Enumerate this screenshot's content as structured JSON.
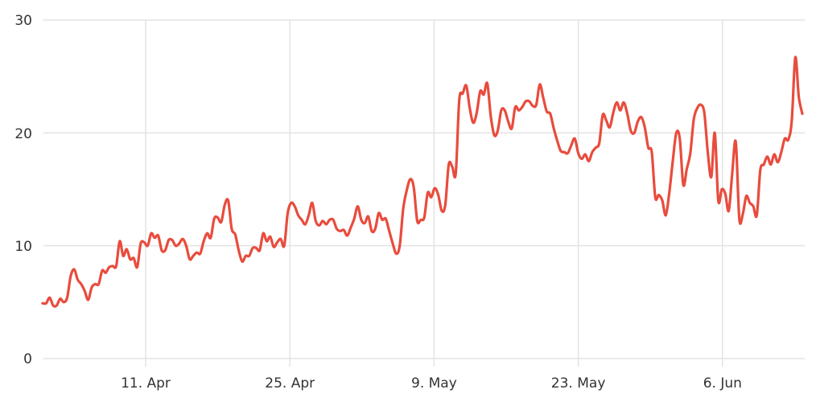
{
  "chart_data": {
    "type": "line",
    "title": "",
    "xlabel": "",
    "ylabel": "",
    "ylim": [
      0,
      30
    ],
    "y_ticks": [
      "0",
      "10",
      "20",
      "30"
    ],
    "x_ticks": [
      {
        "label": "11. Apr",
        "date": "Apr 11"
      },
      {
        "label": "25. Apr",
        "date": "Apr 25"
      },
      {
        "label": "9. May",
        "date": "May 9"
      },
      {
        "label": "23. May",
        "date": "May 23"
      },
      {
        "label": "6. Jun",
        "date": "Jun 6"
      }
    ],
    "x_start": "Apr 1 00:00",
    "x_end": "Jun 13 18:00",
    "grid": true,
    "line_color": "#e84c3d",
    "values": [
      4.9,
      4.9,
      5.4,
      4.7,
      4.7,
      5.3,
      5.0,
      5.4,
      7.3,
      7.9,
      7.0,
      6.6,
      6.0,
      5.2,
      6.3,
      6.6,
      6.6,
      7.8,
      7.6,
      8.1,
      8.2,
      8.2,
      10.4,
      9.1,
      9.7,
      8.8,
      8.9,
      8.1,
      10.2,
      10.3,
      10.0,
      11.1,
      10.7,
      10.9,
      9.6,
      9.6,
      10.5,
      10.5,
      10.0,
      10.2,
      10.6,
      10.0,
      8.8,
      9.1,
      9.4,
      9.3,
      10.4,
      11.1,
      10.7,
      12.4,
      12.5,
      12.1,
      13.6,
      14.0,
      11.5,
      11.0,
      9.6,
      8.6,
      9.1,
      9.1,
      9.8,
      9.8,
      9.6,
      11.1,
      10.4,
      10.8,
      9.9,
      10.3,
      10.6,
      10.0,
      12.9,
      13.8,
      13.5,
      12.7,
      12.3,
      11.9,
      12.7,
      13.8,
      12.2,
      11.8,
      12.2,
      11.9,
      12.3,
      12.3,
      11.5,
      11.3,
      11.4,
      10.9,
      11.6,
      12.4,
      13.5,
      12.3,
      12.0,
      12.6,
      11.3,
      11.5,
      12.9,
      12.3,
      12.4,
      11.3,
      10.2,
      9.3,
      10.0,
      13.3,
      14.9,
      15.9,
      15.2,
      12.2,
      12.3,
      12.5,
      14.7,
      14.3,
      15.1,
      14.5,
      13.1,
      13.6,
      17.2,
      17.0,
      16.4,
      22.9,
      23.5,
      24.2,
      22.2,
      20.9,
      21.8,
      23.7,
      23.4,
      24.4,
      21.5,
      19.8,
      20.2,
      22.0,
      22.0,
      21.0,
      20.4,
      22.3,
      22.0,
      22.3,
      22.8,
      22.8,
      22.4,
      22.5,
      24.3,
      23.1,
      21.9,
      21.7,
      20.4,
      19.3,
      18.4,
      18.3,
      18.2,
      18.9,
      19.5,
      18.2,
      17.7,
      18.1,
      17.5,
      18.3,
      18.7,
      19.1,
      21.6,
      21.1,
      20.5,
      21.8,
      22.7,
      22.0,
      22.7,
      21.7,
      20.2,
      20.0,
      21.0,
      21.4,
      20.5,
      18.7,
      18.3,
      14.3,
      14.5,
      14.0,
      12.7,
      14.7,
      17.5,
      20.0,
      19.5,
      15.4,
      16.8,
      18.2,
      21.2,
      22.2,
      22.5,
      21.8,
      18.3,
      16.1,
      20.0,
      14.0,
      15.0,
      14.6,
      13.1,
      16.5,
      19.2,
      12.4,
      12.8,
      14.4,
      13.8,
      13.5,
      12.7,
      16.7,
      17.2,
      17.9,
      17.2,
      18.1,
      17.4,
      18.3,
      19.5,
      19.4,
      21.1,
      26.7,
      23.2,
      21.7
    ]
  }
}
